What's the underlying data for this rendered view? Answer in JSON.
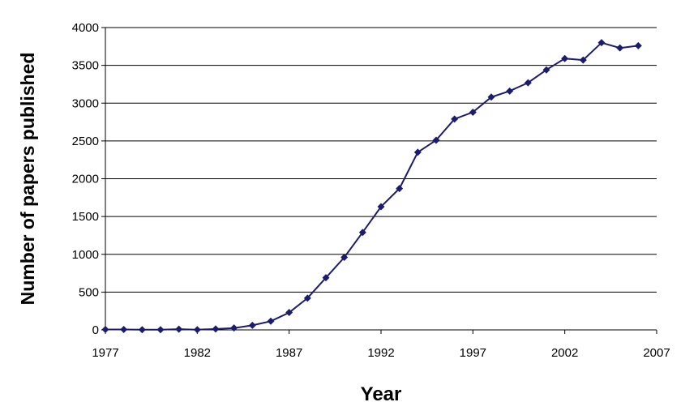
{
  "chart_data": {
    "type": "line",
    "title": "",
    "xlabel": "Year",
    "ylabel": "Number of papers published",
    "xlim": [
      1977,
      2007
    ],
    "ylim": [
      0,
      4000
    ],
    "x_ticks": [
      "1977",
      "1982",
      "1987",
      "1992",
      "1997",
      "2002",
      "2007"
    ],
    "y_ticks": [
      "0",
      "500",
      "1000",
      "1500",
      "2000",
      "2500",
      "3000",
      "3500",
      "4000"
    ],
    "grid": "horizontal",
    "line_color": "#1c1c6e",
    "series": [
      {
        "x": [
          1977,
          1978,
          1979,
          1980,
          1981,
          1982,
          1983,
          1984,
          1985,
          1986,
          1987,
          1988,
          1989,
          1990,
          1991,
          1992,
          1993,
          1994,
          1995,
          1996,
          1997,
          1998,
          1999,
          2000,
          2001,
          2002,
          2003,
          2004,
          2005,
          2006
        ],
        "values": [
          5,
          5,
          3,
          3,
          10,
          3,
          12,
          25,
          60,
          115,
          230,
          420,
          690,
          960,
          1290,
          1630,
          1870,
          2350,
          2510,
          2790,
          2880,
          3080,
          3160,
          3270,
          3440,
          3590,
          3570,
          3800,
          3730,
          3760
        ]
      }
    ]
  }
}
